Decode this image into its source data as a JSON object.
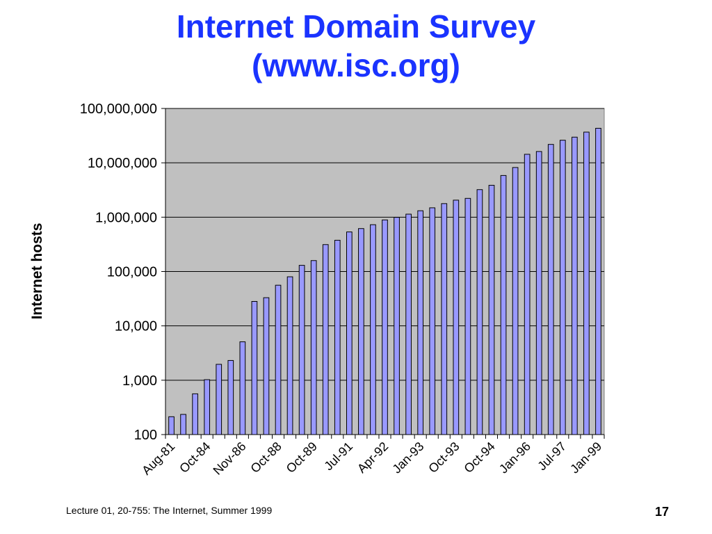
{
  "slide": {
    "title_line1": "Internet Domain Survey",
    "title_line2": "(www.isc.org)",
    "footer": "Lecture 01, 20-755: The Internet, Summer 1999",
    "page_number": "17"
  },
  "chart_data": {
    "type": "bar",
    "ylabel": "Internet hosts",
    "xlabel": "",
    "yscale": "log",
    "ylim": [
      100,
      100000000
    ],
    "y_ticks": [
      100,
      1000,
      10000,
      100000,
      1000000,
      10000000,
      100000000
    ],
    "y_tick_labels": [
      "100",
      "1,000",
      "10,000",
      "100,000",
      "1,000,000",
      "10,000,000",
      "100,000,000"
    ],
    "grid": true,
    "plot_background": "#c0c0c0",
    "bar_color": "#9999ff",
    "x_tick_labels": [
      {
        "label": "Aug-81",
        "index": 0
      },
      {
        "label": "Oct-84",
        "index": 3
      },
      {
        "label": "Nov-86",
        "index": 6
      },
      {
        "label": "Oct-88",
        "index": 9
      },
      {
        "label": "Oct-89",
        "index": 12
      },
      {
        "label": "Jul-91",
        "index": 15
      },
      {
        "label": "Apr-92",
        "index": 18
      },
      {
        "label": "Jan-93",
        "index": 21
      },
      {
        "label": "Oct-93",
        "index": 24
      },
      {
        "label": "Oct-94",
        "index": 27
      },
      {
        "label": "Jan-96",
        "index": 30
      },
      {
        "label": "Jul-97",
        "index": 33
      },
      {
        "label": "Jan-99",
        "index": 36
      }
    ],
    "values": [
      213,
      235,
      562,
      1024,
      1961,
      2308,
      5089,
      28174,
      33000,
      56000,
      80000,
      130000,
      159000,
      313000,
      376000,
      535000,
      617000,
      727000,
      890000,
      992000,
      1136000,
      1313000,
      1486000,
      1776000,
      2056000,
      2217000,
      3212000,
      3864000,
      5846000,
      8200000,
      14352000,
      16146000,
      21819000,
      26053000,
      29670000,
      36739000,
      43230000
    ]
  }
}
